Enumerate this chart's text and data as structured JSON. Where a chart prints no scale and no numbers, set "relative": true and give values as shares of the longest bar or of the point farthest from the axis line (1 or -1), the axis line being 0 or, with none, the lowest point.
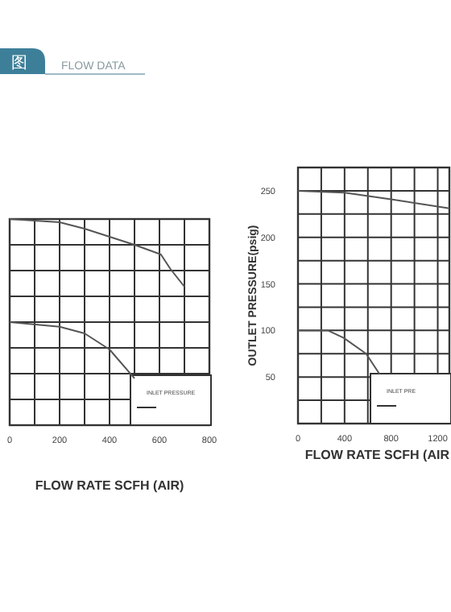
{
  "chart_data": [
    {
      "type": "line",
      "title": "FLOW DATA",
      "annotations": [
        "图"
      ],
      "xlabel": "FLOW RATE SCFH (AIR)",
      "relative": true,
      "grid": true,
      "legend_title": "INLET PRESSURE",
      "xlim": [
        0,
        800
      ],
      "xticks": [
        0,
        {
          "value": 100,
          "label": null
        },
        200,
        {
          "value": 300,
          "label": null
        },
        400,
        {
          "value": 500,
          "label": null
        },
        600,
        {
          "value": 700,
          "label": null
        },
        800
      ],
      "series": [
        {
          "color": "#555555",
          "x": [
            0,
            200,
            300,
            500,
            606,
            644,
            700
          ],
          "values": [
            1,
            0.984,
            0.953,
            0.875,
            0.828,
            0.758,
            0.672
          ]
        },
        {
          "color": "#555555",
          "x": [
            0,
            200,
            300,
            400,
            500
          ],
          "values": [
            0.5,
            0.477,
            0.445,
            0.367,
            0.227
          ]
        }
      ]
    },
    {
      "type": "line",
      "xlabel": "FLOW RATE SCFH (AIR",
      "ylabel": "OUTLET PRESSURE(psig)",
      "grid": true,
      "legend_title": "INLET PRE",
      "xlim": [
        0,
        1300
      ],
      "xticks": [
        0,
        {
          "value": 200,
          "label": null
        },
        400,
        {
          "value": 600,
          "label": null
        },
        800,
        {
          "value": 1000,
          "label": null
        },
        1200
      ],
      "ylim": [
        0,
        275
      ],
      "yticks": [
        {
          "value": 25,
          "label": null
        },
        50,
        {
          "value": 75,
          "label": null
        },
        100,
        {
          "value": 125,
          "label": null
        },
        150,
        {
          "value": 175,
          "label": null
        },
        200,
        {
          "value": 225,
          "label": null
        },
        250
      ],
      "series": [
        {
          "color": "#555555",
          "x": [
            0,
            400,
            800,
            1200,
            1300
          ],
          "values": [
            250,
            248,
            241,
            233,
            231
          ]
        },
        {
          "color": "#555555",
          "x": [
            0,
            257,
            393,
            585,
            701
          ],
          "values": [
            100,
            100,
            92,
            75,
            53
          ]
        }
      ]
    }
  ]
}
